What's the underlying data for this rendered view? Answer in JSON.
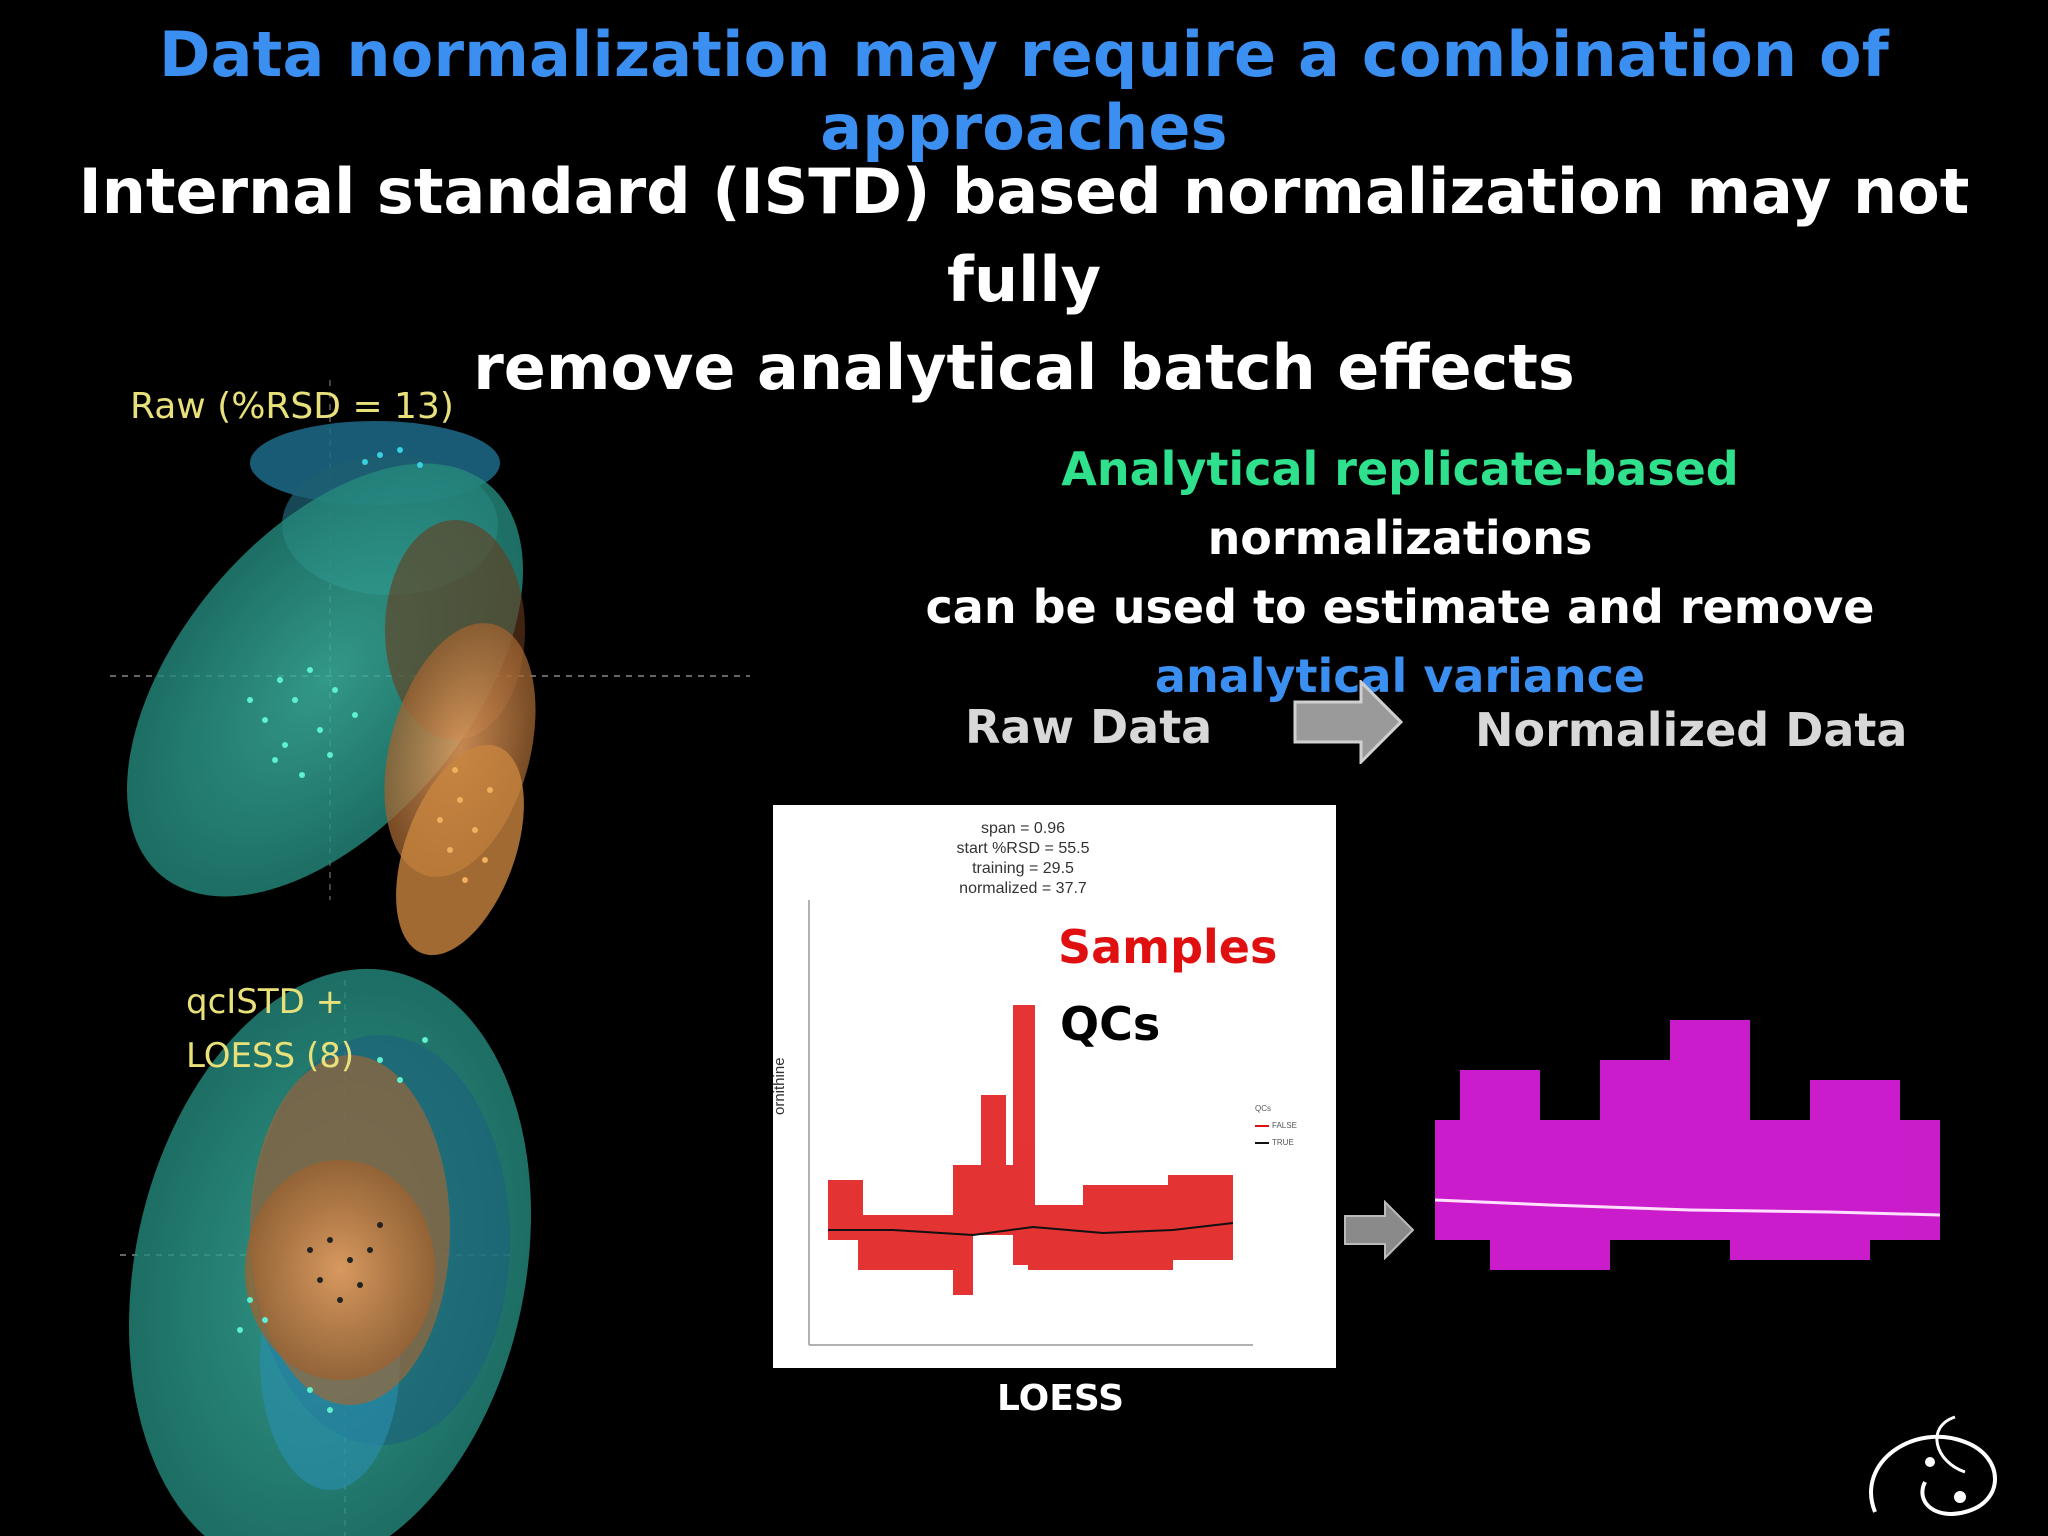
{
  "slide": {
    "title": "Data normalization may require a combination of approaches",
    "subtitle_line1": "Internal standard (ISTD) based normalization may not fully",
    "subtitle_line2": "remove analytical batch effects",
    "colors": {
      "title": "#3b8ff0",
      "highlight_green": "#2fe08c",
      "samples_red": "#e01010",
      "normalized_magenta": "#e020e0",
      "teal": "#2a9a8c",
      "orange": "#c87a3a"
    }
  },
  "pca": {
    "top_label": "Raw (%RSD = 13)",
    "bottom_label_line1": "qcISTD +",
    "bottom_label_line2": "LOESS (8)"
  },
  "description": {
    "green_part": "Analytical replicate-based",
    "line1_rest": " normalizations",
    "line2": "can be used to estimate and remove",
    "blue_part": "analytical variance"
  },
  "flow": {
    "raw_label": "Raw Data",
    "normalized_label": "Normalized Data",
    "arrow_icon": "right-arrow-icon"
  },
  "loess_plot": {
    "stats": [
      "span = 0.96",
      "start %RSD = 55.5",
      "training = 29.5",
      "normalized = 37.7"
    ],
    "y_axis_label": "ornithine",
    "samples_label": "Samples",
    "qcs_label": "QCs",
    "legend_title": "QCs",
    "legend_false": "FALSE",
    "legend_true": "TRUE",
    "caption": "LOESS"
  }
}
